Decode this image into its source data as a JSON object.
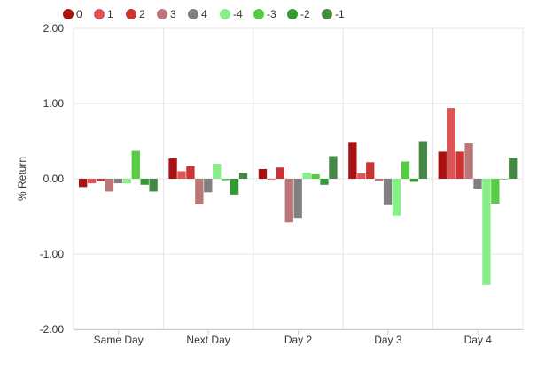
{
  "chart_data": {
    "type": "bar",
    "categories": [
      "Same Day",
      "Next Day",
      "Day 2",
      "Day 3",
      "Day 4"
    ],
    "ylabel": "% Return",
    "ylim": [
      -2.0,
      2.0
    ],
    "yticks": [
      2.0,
      1.0,
      0.0,
      -1.0,
      -2.0
    ],
    "ytick_labels": [
      "2.00",
      "1.00",
      "0.00",
      "-1.00",
      "-2.00"
    ],
    "grid": true,
    "legend_position": "top-left",
    "series": [
      {
        "name": "0",
        "color": "#aa1111",
        "values": [
          -0.11,
          0.27,
          0.13,
          0.49,
          0.36
        ]
      },
      {
        "name": "1",
        "color": "#dd5555",
        "values": [
          -0.06,
          0.1,
          -0.01,
          0.07,
          0.94
        ]
      },
      {
        "name": "2",
        "color": "#cc3333",
        "values": [
          -0.03,
          0.17,
          0.15,
          0.22,
          0.36
        ]
      },
      {
        "name": "3",
        "color": "#bb7777",
        "values": [
          -0.17,
          -0.34,
          -0.58,
          -0.03,
          0.47
        ]
      },
      {
        "name": "4",
        "color": "#808080",
        "values": [
          -0.06,
          -0.18,
          -0.52,
          -0.35,
          -0.13
        ]
      },
      {
        "name": "-4",
        "color": "#88ee88",
        "values": [
          -0.06,
          0.2,
          0.08,
          -0.49,
          -1.41
        ]
      },
      {
        "name": "-3",
        "color": "#55cc44",
        "values": [
          0.37,
          -0.02,
          0.06,
          0.23,
          -0.33
        ]
      },
      {
        "name": "-2",
        "color": "#339933",
        "values": [
          -0.08,
          -0.21,
          -0.08,
          -0.04,
          0.0
        ]
      },
      {
        "name": "-1",
        "color": "#448844",
        "values": [
          -0.17,
          0.08,
          0.3,
          0.5,
          0.28
        ]
      }
    ]
  }
}
